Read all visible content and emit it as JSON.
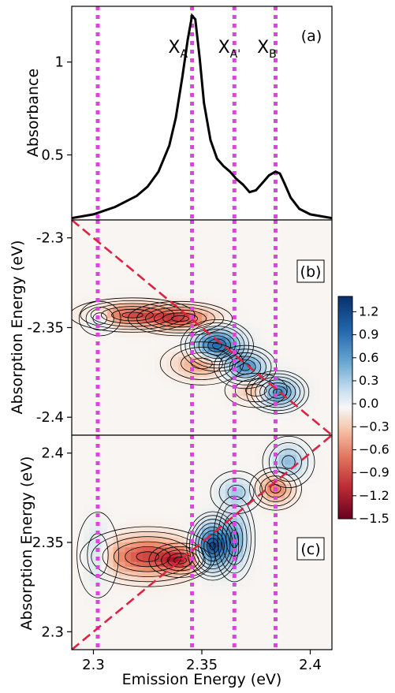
{
  "chart_data": [
    {
      "panel": "(a)",
      "type": "line",
      "ylabel": "Absorbance",
      "xlim": [
        2.29,
        2.41
      ],
      "ylim": [
        0.15,
        1.3
      ],
      "y_ticks": [
        0.5,
        1
      ],
      "y_tick_labels": [
        "0.5",
        "1"
      ],
      "series": [
        {
          "x": [
            2.29,
            2.3,
            2.31,
            2.32,
            2.325,
            2.33,
            2.335,
            2.338,
            2.341,
            2.3435,
            2.3455,
            2.347,
            2.349,
            2.351,
            2.354,
            2.357,
            2.36,
            2.363,
            2.366,
            2.369,
            2.372,
            2.375,
            2.378,
            2.381,
            2.384,
            2.386,
            2.388,
            2.391,
            2.395,
            2.4,
            2.41
          ],
          "y": [
            0.16,
            0.18,
            0.22,
            0.28,
            0.33,
            0.41,
            0.55,
            0.7,
            0.92,
            1.12,
            1.25,
            1.23,
            1.02,
            0.78,
            0.58,
            0.48,
            0.44,
            0.41,
            0.37,
            0.34,
            0.3,
            0.31,
            0.35,
            0.39,
            0.41,
            0.4,
            0.35,
            0.27,
            0.21,
            0.18,
            0.16
          ]
        }
      ],
      "annotations": [
        {
          "text": "X",
          "sub": "A",
          "x": 2.3345,
          "y": 1.05
        },
        {
          "text": "X",
          "sub": "A'",
          "x": 2.3575,
          "y": 1.05
        },
        {
          "text": "X",
          "sub": "B",
          "x": 2.3755,
          "y": 1.05
        }
      ],
      "vlines": [
        2.302,
        2.3455,
        2.365,
        2.384
      ],
      "vline_color": "#dd44dd"
    },
    {
      "panel": "(b)",
      "type": "heatmap",
      "ylabel": "Absorption Energy (eV)",
      "xlim": [
        2.29,
        2.41
      ],
      "ylim": [
        -2.41,
        -2.29
      ],
      "y_ticks": [
        -2.3,
        -2.35,
        -2.4
      ],
      "y_tick_labels": [
        "-2.3",
        "-2.35",
        "-2.4"
      ],
      "features": [
        {
          "x": 2.318,
          "y": -2.343,
          "amp": -0.85,
          "sx": 0.012,
          "sy": 0.004
        },
        {
          "x": 2.34,
          "y": -2.345,
          "amp": -0.9,
          "sx": 0.01,
          "sy": 0.004
        },
        {
          "x": 2.303,
          "y": -2.345,
          "amp": 0.45,
          "sx": 0.004,
          "sy": 0.004
        },
        {
          "x": 2.357,
          "y": -2.36,
          "amp": 1.2,
          "sx": 0.007,
          "sy": 0.006
        },
        {
          "x": 2.37,
          "y": -2.372,
          "amp": 0.9,
          "sx": 0.006,
          "sy": 0.005
        },
        {
          "x": 2.385,
          "y": -2.386,
          "amp": 1.0,
          "sx": 0.006,
          "sy": 0.005
        },
        {
          "x": 2.35,
          "y": -2.37,
          "amp": -0.6,
          "sx": 0.008,
          "sy": 0.005
        },
        {
          "x": 2.375,
          "y": -2.385,
          "amp": -0.5,
          "sx": 0.006,
          "sy": 0.004
        }
      ],
      "diagonal": {
        "from": [
          2.29,
          -2.29
        ],
        "to": [
          2.41,
          -2.41
        ],
        "color": "#dd2244"
      },
      "vlines": [
        2.302,
        2.3455,
        2.365,
        2.384
      ]
    },
    {
      "panel": "(c)",
      "type": "heatmap",
      "xlabel": "Emission Energy (eV)",
      "ylabel": "Absorption Energy (eV)",
      "xlim": [
        2.29,
        2.41
      ],
      "ylim": [
        2.29,
        2.41
      ],
      "x_ticks": [
        2.3,
        2.35,
        2.4
      ],
      "x_tick_labels": [
        "2.3",
        "2.35",
        "2.4"
      ],
      "y_ticks": [
        2.3,
        2.35,
        2.4
      ],
      "y_tick_labels": [
        "2.3",
        "2.35",
        "2.4"
      ],
      "features": [
        {
          "x": 2.325,
          "y": 2.342,
          "amp": -0.95,
          "sx": 0.013,
          "sy": 0.007
        },
        {
          "x": 2.34,
          "y": 2.34,
          "amp": -0.75,
          "sx": 0.006,
          "sy": 0.004
        },
        {
          "x": 2.302,
          "y": 2.343,
          "amp": 0.35,
          "sx": 0.004,
          "sy": 0.01
        },
        {
          "x": 2.355,
          "y": 2.348,
          "amp": 1.35,
          "sx": 0.005,
          "sy": 0.008
        },
        {
          "x": 2.365,
          "y": 2.352,
          "amp": 0.7,
          "sx": 0.004,
          "sy": 0.01
        },
        {
          "x": 2.384,
          "y": 2.38,
          "amp": -0.7,
          "sx": 0.005,
          "sy": 0.005
        },
        {
          "x": 2.39,
          "y": 2.395,
          "amp": 0.55,
          "sx": 0.005,
          "sy": 0.006
        },
        {
          "x": 2.366,
          "y": 2.378,
          "amp": 0.45,
          "sx": 0.005,
          "sy": 0.005
        }
      ],
      "diagonal": {
        "from": [
          2.29,
          2.29
        ],
        "to": [
          2.41,
          2.41
        ],
        "color": "#dd2244"
      },
      "vlines": [
        2.302,
        2.3455,
        2.365,
        2.384
      ]
    }
  ],
  "colorbar": {
    "range": [
      -1.5,
      1.4
    ],
    "ticks": [
      1.2,
      0.9,
      0.6,
      0.3,
      0.0,
      -0.3,
      -0.6,
      -0.9,
      -1.2,
      -1.5
    ],
    "tick_labels": [
      "1.2",
      "0.9",
      "0.6",
      "0.3",
      "0.0",
      "−0.3",
      "−0.6",
      "−0.9",
      "−1.2",
      "−1.5"
    ],
    "colormap": "RdBu"
  },
  "shared": {
    "xlabel": "Emission Energy (eV)"
  }
}
